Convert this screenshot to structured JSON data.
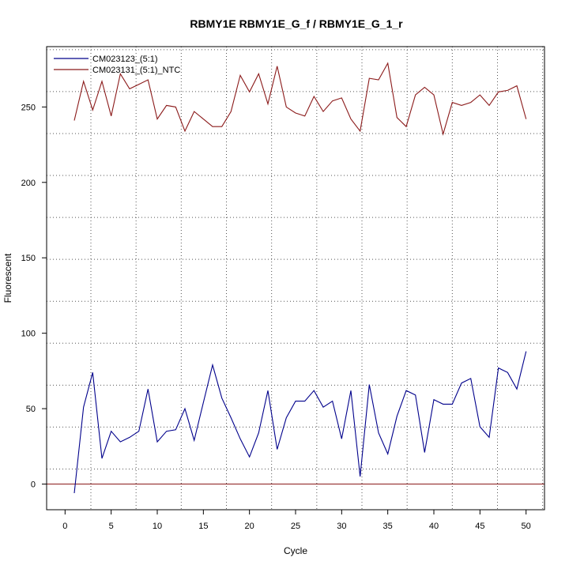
{
  "chart_data": {
    "type": "line",
    "title": "RBMY1E  RBMY1E_G_f / RBMY1E_G_1_r",
    "xlabel": "Cycle",
    "ylabel": "Fluorescent",
    "xlim": [
      -2,
      52
    ],
    "ylim": [
      -17,
      290
    ],
    "x_ticks": [
      0,
      5,
      10,
      15,
      20,
      25,
      30,
      35,
      40,
      45,
      50
    ],
    "y_ticks": [
      0,
      50,
      100,
      150,
      200,
      250
    ],
    "grid": true,
    "grid_style": "dotted",
    "legend_position": "top-left",
    "baseline": {
      "y": 0,
      "color": "#8b1a1a"
    },
    "x": [
      1,
      2,
      3,
      4,
      5,
      6,
      7,
      8,
      9,
      10,
      11,
      12,
      13,
      14,
      15,
      16,
      17,
      18,
      19,
      20,
      21,
      22,
      23,
      24,
      25,
      26,
      27,
      28,
      29,
      30,
      31,
      32,
      33,
      34,
      35,
      36,
      37,
      38,
      39,
      40,
      41,
      42,
      43,
      44,
      45,
      46,
      47,
      48,
      49,
      50
    ],
    "series": [
      {
        "name": "CM023123_(5:1)",
        "color": "#00008b",
        "values": [
          -6,
          51,
          74,
          17,
          35,
          28,
          31,
          35,
          63,
          28,
          35,
          36,
          50,
          29,
          54,
          79,
          57,
          44,
          30,
          18,
          34,
          62,
          23,
          44,
          55,
          55,
          62,
          51,
          55,
          30,
          62,
          5,
          66,
          34,
          20,
          45,
          62,
          59,
          21,
          56,
          53,
          53,
          67,
          70,
          38,
          31,
          77,
          74,
          63,
          88
        ]
      },
      {
        "name": "CM023131_(5:1)_NTC",
        "color": "#8b1a1a",
        "values": [
          241,
          267,
          248,
          267,
          244,
          272,
          262,
          265,
          268,
          242,
          251,
          250,
          234,
          247,
          242,
          237,
          237,
          247,
          271,
          260,
          272,
          252,
          277,
          250,
          246,
          244,
          257,
          247,
          254,
          256,
          242,
          234,
          269,
          268,
          279,
          243,
          237,
          258,
          263,
          258,
          232,
          253,
          251,
          253,
          258,
          251,
          260,
          261,
          264,
          242
        ]
      }
    ]
  }
}
